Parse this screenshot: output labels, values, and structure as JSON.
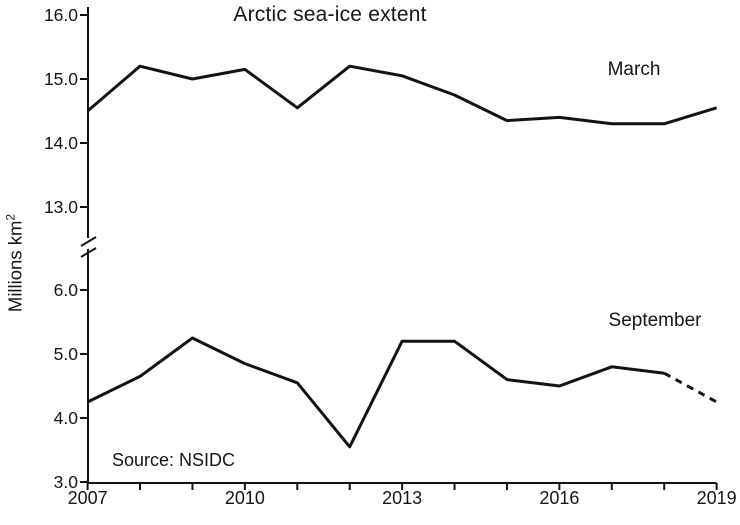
{
  "title": "Arctic sea-ice extent",
  "source_text": "Source: NSIDC",
  "ylabel_base": "Millions km",
  "ylabel_sup": "2",
  "colors": {
    "line": "#131313",
    "axis": "#131313",
    "text": "#161616",
    "background": "#ffffff"
  },
  "chart_data": {
    "type": "line",
    "title": "Arctic sea-ice extent",
    "xlabel": "",
    "ylabel": "Millions km^2",
    "grid": false,
    "legend_position": "inline-labels-on-lines",
    "axis_break": true,
    "x": [
      2007,
      2008,
      2009,
      2010,
      2011,
      2012,
      2013,
      2014,
      2015,
      2016,
      2017,
      2018,
      2019
    ],
    "series": [
      {
        "name": "March",
        "axis": "upper",
        "style": "solid",
        "values": [
          14.5,
          15.2,
          15.0,
          15.15,
          14.55,
          15.2,
          15.05,
          14.75,
          14.35,
          14.4,
          14.3,
          14.3,
          14.55
        ]
      },
      {
        "name": "September",
        "axis": "lower",
        "style": "solid-then-dashed",
        "dashed_segment_x": [
          2018,
          2019
        ],
        "values": [
          4.25,
          4.65,
          5.25,
          4.85,
          4.55,
          3.55,
          5.2,
          5.2,
          4.6,
          4.5,
          4.8,
          4.7,
          4.25
        ]
      }
    ],
    "upper_axis": {
      "range": [
        13.0,
        16.0
      ],
      "tick_values": [
        16.0,
        15.0,
        14.0,
        13.0
      ],
      "tick_labels": [
        "16.0",
        "15.0",
        "14.0",
        "13.0"
      ]
    },
    "lower_axis": {
      "range": [
        3.0,
        6.0
      ],
      "tick_values": [
        6.0,
        5.0,
        4.0,
        3.0
      ],
      "tick_labels": [
        "6.0",
        "5.0",
        "4.0",
        "3.0"
      ]
    },
    "x_axis": {
      "range": [
        2007,
        2019
      ],
      "tick_step": 1,
      "labeled_ticks": [
        2007,
        2010,
        2013,
        2016,
        2019
      ],
      "labeled_tick_labels": [
        "2007",
        "2010",
        "2013",
        "2016",
        "2019"
      ]
    }
  }
}
